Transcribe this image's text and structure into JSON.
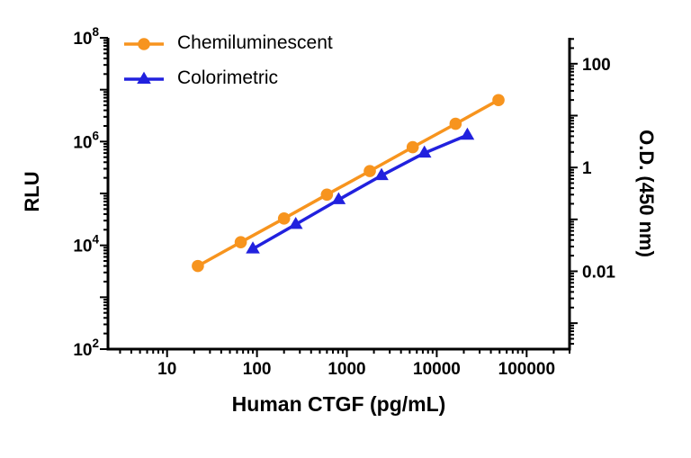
{
  "legend": {
    "items": [
      {
        "label": "Chemiluminescent",
        "color": "#F7941E",
        "marker": "circle"
      },
      {
        "label": "Colorimetric",
        "color": "#2121DE",
        "marker": "triangle"
      }
    ]
  },
  "chart_data": {
    "type": "line",
    "title": "",
    "xlabel": "Human CTGF (pg/mL)",
    "x_scale": "log",
    "x_range": [
      2.2,
      300000
    ],
    "x_ticks": [
      {
        "value": 10,
        "label": "10"
      },
      {
        "value": 100,
        "label": "100"
      },
      {
        "value": 1000,
        "label": "1000"
      },
      {
        "value": 10000,
        "label": "10000"
      },
      {
        "value": 100000,
        "label": "100000"
      }
    ],
    "y_left": {
      "label": "RLU",
      "scale": "log",
      "range": [
        100,
        100000000
      ],
      "ticks": [
        {
          "value": 100,
          "base": "10",
          "exp": "2"
        },
        {
          "value": 10000,
          "base": "10",
          "exp": "4"
        },
        {
          "value": 1000000,
          "base": "10",
          "exp": "6"
        },
        {
          "value": 100000000,
          "base": "10",
          "exp": "8"
        }
      ]
    },
    "y_right": {
      "label": "O.D. (450 nm)",
      "scale": "log",
      "range": [
        0.000316,
        316
      ],
      "ticks": [
        {
          "value": 0.01,
          "label": "0.01"
        },
        {
          "value": 1,
          "label": "1"
        },
        {
          "value": 100,
          "label": "100"
        }
      ]
    },
    "grid": false,
    "legend_position": "top-left-inside",
    "series": [
      {
        "name": "Chemiluminescent",
        "axis": "left",
        "color": "#F7941E",
        "marker": "circle",
        "x": [
          22,
          66,
          200,
          600,
          1800,
          5400,
          16200,
          48600
        ],
        "y": [
          4000,
          11500,
          33000,
          95000,
          270000,
          780000,
          2200000,
          6300000
        ]
      },
      {
        "name": "Colorimetric",
        "axis": "right",
        "color": "#2121DE",
        "marker": "triangle",
        "x": [
          90,
          270,
          810,
          2430,
          7290,
          21900
        ],
        "y": [
          0.027,
          0.08,
          0.24,
          0.7,
          1.9,
          4.2
        ]
      }
    ]
  }
}
